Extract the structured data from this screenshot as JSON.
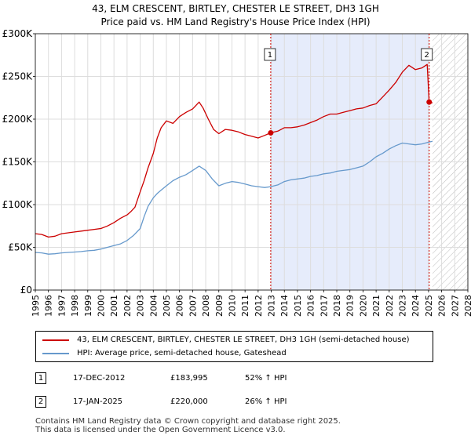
{
  "header": {
    "title": "43, ELM CRESCENT, BIRTLEY, CHESTER LE STREET, DH3 1GH",
    "subtitle": "Price paid vs. HM Land Registry's House Price Index (HPI)"
  },
  "colors": {
    "property": "#cc0000",
    "hpi": "#6699cc",
    "shade": "#e6ecfb",
    "marker_line": "#cc0000"
  },
  "chart_data": {
    "type": "line",
    "title": "43, ELM CRESCENT, BIRTLEY, CHESTER LE STREET, DH3 1GH",
    "xlabel": "",
    "ylabel": "",
    "xlim": [
      1995,
      2028
    ],
    "ylim": [
      0,
      300000
    ],
    "yticks": [
      {
        "value": 0,
        "label": "£0"
      },
      {
        "value": 50000,
        "label": "£50K"
      },
      {
        "value": 100000,
        "label": "£100K"
      },
      {
        "value": 150000,
        "label": "£150K"
      },
      {
        "value": 200000,
        "label": "£200K"
      },
      {
        "value": 250000,
        "label": "£250K"
      },
      {
        "value": 300000,
        "label": "£300K"
      }
    ],
    "xticks": [
      "1995",
      "1996",
      "1997",
      "1998",
      "1999",
      "2000",
      "2001",
      "2002",
      "2003",
      "2004",
      "2005",
      "2006",
      "2007",
      "2008",
      "2009",
      "2010",
      "2011",
      "2012",
      "2013",
      "2014",
      "2015",
      "2016",
      "2017",
      "2018",
      "2019",
      "2020",
      "2021",
      "2022",
      "2023",
      "2024",
      "2025",
      "2026",
      "2027",
      "2028"
    ],
    "shaded_period": [
      2012.96,
      2025.05
    ],
    "hatched_future_from": 2025.3,
    "series": [
      {
        "name": "43, ELM CRESCENT, BIRTLEY, CHESTER LE STREET, DH3 1GH (semi-detached house)",
        "x": [
          1995.0,
          1995.5,
          1996.0,
          1996.5,
          1997.0,
          1997.5,
          1998.0,
          1998.5,
          1999.0,
          1999.5,
          2000.0,
          2000.5,
          2001.0,
          2001.5,
          2002.0,
          2002.3,
          2002.6,
          2003.0,
          2003.3,
          2003.6,
          2004.0,
          2004.3,
          2004.6,
          2005.0,
          2005.5,
          2006.0,
          2006.5,
          2007.0,
          2007.5,
          2007.8,
          2008.2,
          2008.6,
          2009.0,
          2009.5,
          2010.0,
          2010.5,
          2011.0,
          2011.5,
          2012.0,
          2012.5,
          2012.96,
          2013.5,
          2014.0,
          2014.5,
          2015.0,
          2015.5,
          2016.0,
          2016.5,
          2017.0,
          2017.5,
          2018.0,
          2018.5,
          2019.0,
          2019.5,
          2020.0,
          2020.5,
          2021.0,
          2021.5,
          2022.0,
          2022.5,
          2023.0,
          2023.5,
          2024.0,
          2024.5,
          2024.9,
          2025.05,
          2025.3
        ],
        "y": [
          66000,
          65000,
          62000,
          63000,
          66000,
          67000,
          68000,
          69000,
          70000,
          71000,
          72000,
          75000,
          79000,
          84000,
          88000,
          92000,
          97000,
          115000,
          128000,
          143000,
          160000,
          178000,
          190000,
          198000,
          195000,
          203000,
          208000,
          212000,
          220000,
          213000,
          200000,
          188000,
          183000,
          188000,
          187000,
          185000,
          182000,
          180000,
          178000,
          181000,
          183995,
          186000,
          190000,
          190000,
          191000,
          193000,
          196000,
          199000,
          203000,
          206000,
          206000,
          208000,
          210000,
          212000,
          213000,
          216000,
          218000,
          226000,
          234000,
          243000,
          255000,
          263000,
          258000,
          260000,
          264000,
          220000,
          219000
        ]
      },
      {
        "name": "HPI: Average price, semi-detached house, Gateshead",
        "x": [
          1995.0,
          1995.5,
          1996.0,
          1996.5,
          1997.0,
          1997.5,
          1998.0,
          1998.5,
          1999.0,
          1999.5,
          2000.0,
          2000.5,
          2001.0,
          2001.5,
          2002.0,
          2002.5,
          2003.0,
          2003.3,
          2003.6,
          2004.0,
          2004.3,
          2004.6,
          2005.0,
          2005.5,
          2006.0,
          2006.5,
          2007.0,
          2007.5,
          2008.0,
          2008.5,
          2009.0,
          2009.5,
          2010.0,
          2010.5,
          2011.0,
          2011.5,
          2012.0,
          2012.5,
          2012.96,
          2013.5,
          2014.0,
          2014.5,
          2015.0,
          2015.5,
          2016.0,
          2016.5,
          2017.0,
          2017.5,
          2018.0,
          2018.5,
          2019.0,
          2019.5,
          2020.0,
          2020.5,
          2021.0,
          2021.5,
          2022.0,
          2022.5,
          2023.0,
          2023.5,
          2024.0,
          2024.5,
          2025.0,
          2025.3
        ],
        "y": [
          44000,
          43500,
          42000,
          42500,
          43500,
          44000,
          44500,
          45000,
          46000,
          46500,
          48000,
          50000,
          52000,
          54000,
          58000,
          64000,
          72000,
          86000,
          98000,
          108000,
          113000,
          117000,
          122000,
          128000,
          132000,
          135000,
          140000,
          145000,
          140000,
          130000,
          122000,
          125000,
          127000,
          126000,
          124000,
          122000,
          121000,
          120000,
          121000,
          123000,
          127000,
          129000,
          130000,
          131000,
          133000,
          134000,
          136000,
          137000,
          139000,
          140000,
          141000,
          143000,
          145000,
          150000,
          156000,
          160000,
          165000,
          169000,
          172000,
          171000,
          170000,
          171000,
          173000,
          174000
        ]
      }
    ],
    "markers": [
      {
        "label": "1",
        "x": 2012.96,
        "y": 183995
      },
      {
        "label": "2",
        "x": 2025.05,
        "y": 220000
      }
    ]
  },
  "legend": {
    "property_label": "43, ELM CRESCENT, BIRTLEY, CHESTER LE STREET, DH3 1GH (semi-detached house)",
    "hpi_label": "HPI: Average price, semi-detached house, Gateshead"
  },
  "transactions": [
    {
      "num": "1",
      "date": "17-DEC-2012",
      "price": "£183,995",
      "hpi": "52% ↑ HPI"
    },
    {
      "num": "2",
      "date": "17-JAN-2025",
      "price": "£220,000",
      "hpi": "26% ↑ HPI"
    }
  ],
  "footer": {
    "line1": "Contains HM Land Registry data © Crown copyright and database right 2025.",
    "line2": "This data is licensed under the Open Government Licence v3.0."
  }
}
